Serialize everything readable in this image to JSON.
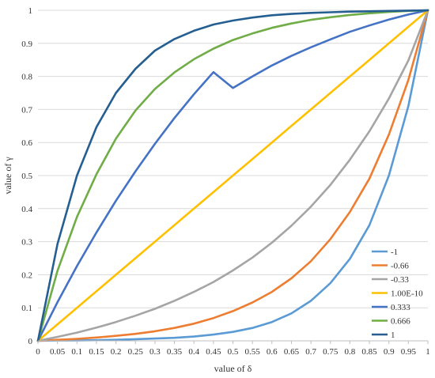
{
  "chart_data": {
    "type": "line",
    "title": "",
    "xlabel": "value of δ",
    "ylabel": "value of γ",
    "xlim": [
      0,
      1
    ],
    "ylim": [
      0,
      1
    ],
    "grid": true,
    "legend_position": "bottom-right",
    "x": [
      0,
      0.05,
      0.1,
      0.15,
      0.2,
      0.25,
      0.3,
      0.35,
      0.4,
      0.45,
      0.5,
      0.55,
      0.6,
      0.65,
      0.7,
      0.75,
      0.8,
      0.85,
      0.9,
      0.95,
      1
    ],
    "x_tick_labels": [
      "0",
      "0.05",
      "0.1",
      "0.15",
      "0.2",
      "0.25",
      "0.3",
      "0.35",
      "0.4",
      "0.45",
      "0.5",
      "0.55",
      "0.6",
      "0.65",
      "0.7",
      "0.75",
      "0.8",
      "0.85",
      "0.9",
      "0.95",
      "1"
    ],
    "y_ticks": [
      0,
      0.1,
      0.2,
      0.3,
      0.4,
      0.5,
      0.6,
      0.7,
      0.8,
      0.9,
      1
    ],
    "y_tick_labels": [
      "0",
      "0.1",
      "0.2",
      "0.3",
      "0.4",
      "0.5",
      "0.6",
      "0.7",
      "0.8",
      "0.9",
      "1"
    ],
    "series": [
      {
        "name": "-1",
        "color": "#5B9BD5",
        "values": [
          0,
          0.001,
          0.001,
          0.002,
          0.003,
          0.005,
          0.007,
          0.009,
          0.013,
          0.019,
          0.027,
          0.039,
          0.057,
          0.083,
          0.121,
          0.175,
          0.248,
          0.35,
          0.5,
          0.71,
          1
        ]
      },
      {
        "name": "-0.66",
        "color": "#ED7D31",
        "values": [
          0,
          0.003,
          0.006,
          0.01,
          0.015,
          0.021,
          0.029,
          0.039,
          0.052,
          0.069,
          0.09,
          0.116,
          0.148,
          0.189,
          0.241,
          0.308,
          0.39,
          0.491,
          0.624,
          0.789,
          1
        ]
      },
      {
        "name": "-0.33",
        "color": "#A5A5A5",
        "values": [
          0,
          0.012,
          0.025,
          0.04,
          0.057,
          0.076,
          0.097,
          0.121,
          0.148,
          0.178,
          0.213,
          0.252,
          0.297,
          0.348,
          0.406,
          0.472,
          0.548,
          0.634,
          0.733,
          0.848,
          1
        ]
      },
      {
        "name": "1.00E-10",
        "color": "#FFC000",
        "values": [
          0,
          0.05,
          0.1,
          0.15,
          0.2,
          0.25,
          0.3,
          0.35,
          0.4,
          0.45,
          0.5,
          0.55,
          0.6,
          0.65,
          0.7,
          0.75,
          0.8,
          0.85,
          0.9,
          0.95,
          1
        ]
      },
      {
        "name": "0.333",
        "color": "#4472C4",
        "values": [
          0,
          0.117,
          0.226,
          0.328,
          0.424,
          0.513,
          0.596,
          0.674,
          0.746,
          0.813,
          0.765,
          0.8,
          0.833,
          0.862,
          0.888,
          0.912,
          0.935,
          0.954,
          0.972,
          0.987,
          1
        ]
      },
      {
        "name": "0.666",
        "color": "#70AD47",
        "values": [
          0,
          0.212,
          0.375,
          0.504,
          0.612,
          0.697,
          0.762,
          0.812,
          0.852,
          0.884,
          0.91,
          0.93,
          0.947,
          0.96,
          0.971,
          0.979,
          0.986,
          0.991,
          0.995,
          0.998,
          1
        ]
      },
      {
        "name": "1",
        "color": "#255E91",
        "values": [
          0,
          0.293,
          0.5,
          0.647,
          0.75,
          0.823,
          0.878,
          0.913,
          0.938,
          0.957,
          0.969,
          0.978,
          0.985,
          0.989,
          0.992,
          0.994,
          0.996,
          0.997,
          0.998,
          0.999,
          1
        ]
      }
    ]
  }
}
